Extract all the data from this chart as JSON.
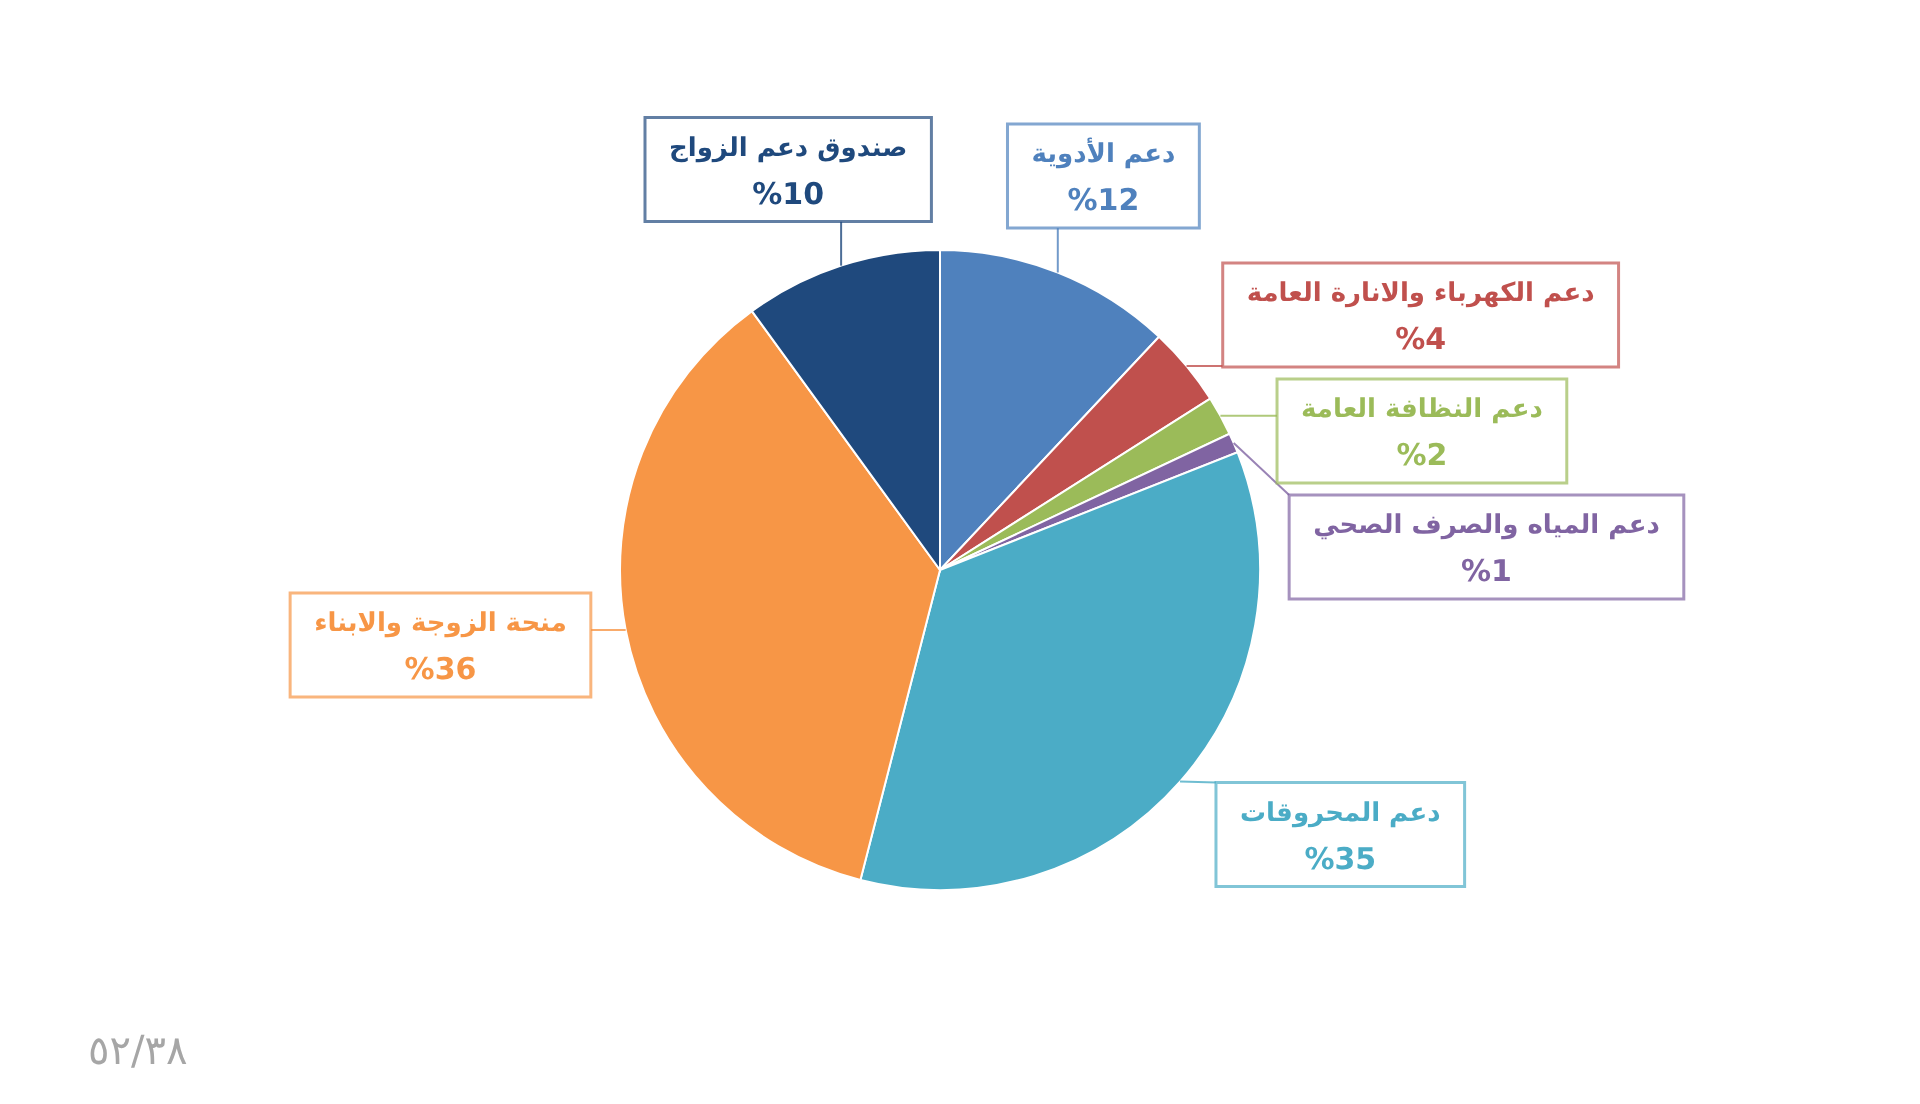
{
  "chart_data": {
    "type": "pie",
    "categories": [
      "دعم الأدوية",
      "دعم الكهرباء والانارة العامة",
      "دعم النظافة العامة",
      "دعم المياه والصرف الصحي",
      "دعم المحروقات",
      "منحة الزوجة والابناء",
      "صندوق دعم الزواج"
    ],
    "values": [
      12,
      4,
      2,
      1,
      35,
      36,
      10
    ],
    "colors": [
      "#4f81bd",
      "#c0504d",
      "#9bbb59",
      "#8064a2",
      "#4bacc6",
      "#f79646",
      "#1f497d"
    ],
    "value_labels": [
      "%12",
      "%4",
      "%2",
      "%1",
      "%35",
      "%36",
      "%10"
    ],
    "annotations": [
      "٥٢/٣٨"
    ]
  }
}
